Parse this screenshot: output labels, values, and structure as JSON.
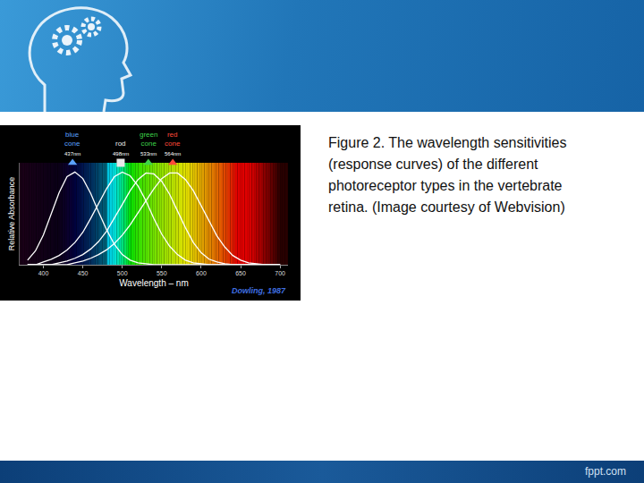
{
  "chart_data": {
    "type": "line",
    "color": "#ffffff",
    "x": [
      380,
      390,
      400,
      410,
      420,
      430,
      440,
      450,
      460,
      470,
      480,
      490,
      500,
      510,
      520,
      530,
      540,
      550,
      560,
      570,
      580,
      590,
      600,
      610,
      620,
      630,
      640,
      650,
      660,
      670,
      680,
      690,
      700
    ],
    "series": [
      {
        "name": "blue cone",
        "color": "#5aa0ff",
        "marker": "triangle",
        "peak": 437,
        "peak_label": "437nm",
        "values": [
          0.05,
          0.15,
          0.32,
          0.55,
          0.78,
          0.95,
          1.0,
          0.93,
          0.77,
          0.57,
          0.38,
          0.22,
          0.11,
          0.05,
          0.02,
          0.01,
          0,
          0,
          0,
          0,
          0,
          0,
          0,
          0,
          0,
          0,
          0,
          0,
          0,
          0,
          0,
          0,
          0
        ]
      },
      {
        "name": "rod",
        "color": "#e8e8e8",
        "marker": "square",
        "peak": 498,
        "peak_label": "498nm",
        "values": [
          0,
          0,
          0.03,
          0.06,
          0.1,
          0.16,
          0.24,
          0.35,
          0.5,
          0.66,
          0.82,
          0.95,
          1.0,
          0.96,
          0.85,
          0.69,
          0.5,
          0.33,
          0.2,
          0.11,
          0.05,
          0.02,
          0.01,
          0,
          0,
          0,
          0,
          0,
          0,
          0,
          0,
          0,
          0
        ]
      },
      {
        "name": "green cone",
        "color": "#3ed24a",
        "marker": "triangle",
        "peak": 533,
        "peak_label": "533nm",
        "values": [
          0,
          0,
          0,
          0,
          0.02,
          0.04,
          0.07,
          0.11,
          0.17,
          0.25,
          0.36,
          0.5,
          0.65,
          0.8,
          0.92,
          0.99,
          0.98,
          0.9,
          0.76,
          0.58,
          0.4,
          0.24,
          0.13,
          0.06,
          0.03,
          0.01,
          0,
          0,
          0,
          0,
          0,
          0,
          0
        ]
      },
      {
        "name": "red cone",
        "color": "#ff4a3a",
        "marker": "triangle",
        "peak": 564,
        "peak_label": "564nm",
        "values": [
          0,
          0,
          0,
          0,
          0,
          0,
          0.02,
          0.04,
          0.07,
          0.11,
          0.16,
          0.23,
          0.32,
          0.43,
          0.56,
          0.69,
          0.82,
          0.93,
          0.99,
          0.99,
          0.92,
          0.8,
          0.64,
          0.47,
          0.31,
          0.19,
          0.1,
          0.05,
          0.02,
          0.01,
          0,
          0,
          0
        ]
      }
    ],
    "x_label": "Wavelength – nm",
    "y_label": "Relative Absorbance",
    "source": "Dowling, 1987",
    "xlim": [
      370,
      710
    ],
    "xticks": [
      400,
      450,
      500,
      550,
      600,
      650,
      700
    ],
    "ylim": [
      0,
      1.1
    ],
    "tick_labels": "x",
    "grid": false
  },
  "slide": {
    "caption": "Figure 2. The wavelength sensitivities (response curves) of the different photoreceptor types in the vertebrate retina. (Image courtesy of Webvision)",
    "footer": "fppt.com"
  }
}
